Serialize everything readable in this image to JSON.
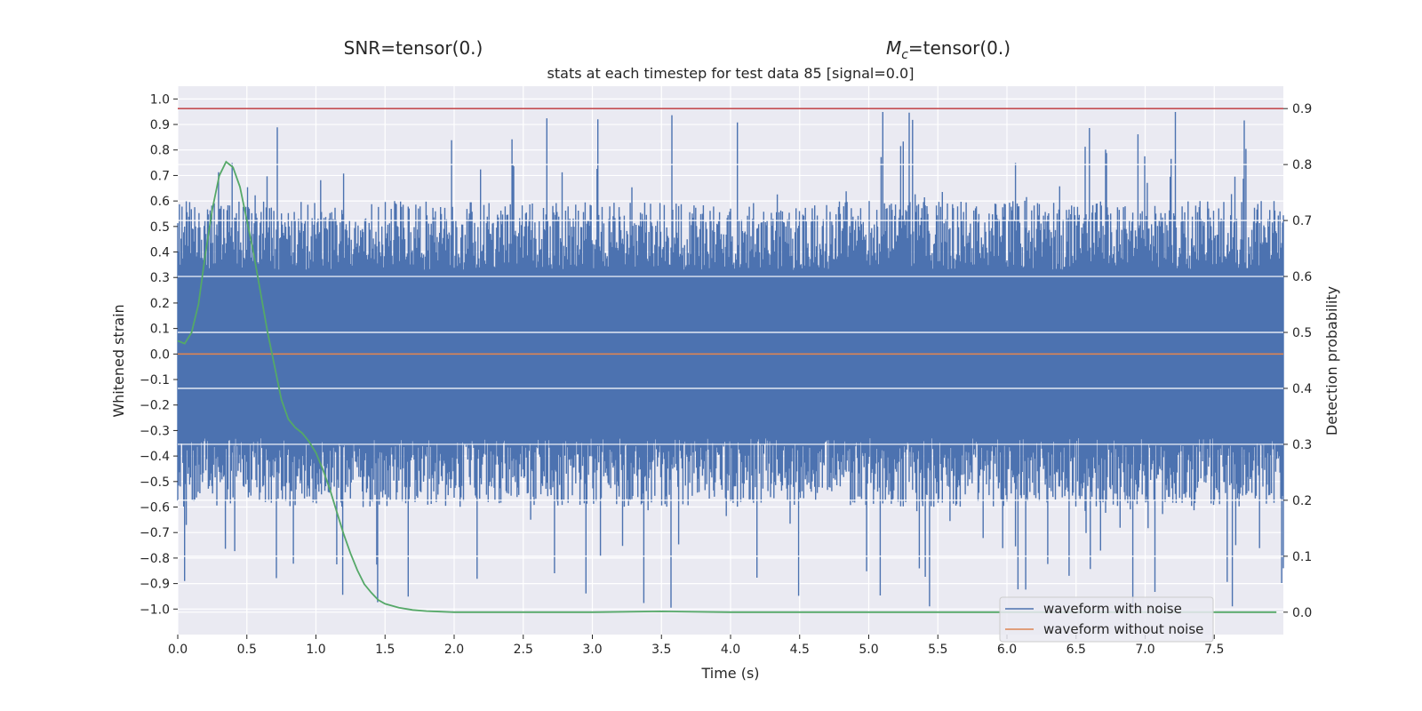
{
  "titles": {
    "left": "SNR=tensor(0.)",
    "right_symbol": "M",
    "right_subscript": "c",
    "right_rest": "=tensor(0.)",
    "subtitle": "stats at each timestep for test data 85 [signal=0.0]"
  },
  "colors": {
    "noise": "#4c72b0",
    "clean": "#dd8452",
    "probability": "#55a868",
    "threshold": "#c44e52",
    "plot_bg": "#eaeaf2",
    "grid": "#ffffff"
  },
  "chart_data": {
    "type": "line",
    "xlabel": "Time (s)",
    "ylabel": "Whitened strain",
    "y2label": "Detection probability",
    "xlim": [
      0.0,
      8.0
    ],
    "ylim": [
      -1.1,
      1.05
    ],
    "y2lim": [
      -0.04,
      0.94
    ],
    "xticks": [
      "0.0",
      "0.5",
      "1.0",
      "1.5",
      "2.0",
      "2.5",
      "3.0",
      "3.5",
      "4.0",
      "4.5",
      "5.0",
      "5.5",
      "6.0",
      "6.5",
      "7.0",
      "7.5"
    ],
    "yticks": [
      "1.0",
      "0.9",
      "0.8",
      "0.7",
      "0.6",
      "0.5",
      "0.4",
      "0.3",
      "0.2",
      "0.1",
      "0.0",
      "−0.1",
      "−0.2",
      "−0.3",
      "−0.4",
      "−0.5",
      "−0.6",
      "−0.7",
      "−0.8",
      "−0.9",
      "−1.0"
    ],
    "y2ticks": [
      "0.9",
      "0.8",
      "0.7",
      "0.6",
      "0.5",
      "0.4",
      "0.3",
      "0.2",
      "0.1",
      "0.0"
    ],
    "grid": true,
    "legend_position": "lower-right",
    "threshold": {
      "axis": "y2",
      "value": 0.9
    },
    "series": [
      {
        "name": "waveform with noise",
        "axis": "y",
        "style": "noise-band",
        "x_range": [
          0.0,
          8.0
        ],
        "envelope": {
          "upper_typical": 0.6,
          "lower_typical": -0.6,
          "peak_max": 0.95,
          "peak_min": -1.0
        }
      },
      {
        "name": "waveform without noise",
        "axis": "y",
        "x": [
          0.0,
          8.0
        ],
        "values": [
          0.0,
          0.0
        ]
      },
      {
        "axis": "y2",
        "x": [
          0.0,
          0.05,
          0.1,
          0.15,
          0.2,
          0.25,
          0.3,
          0.35,
          0.4,
          0.45,
          0.5,
          0.55,
          0.6,
          0.65,
          0.7,
          0.75,
          0.8,
          0.85,
          0.9,
          0.95,
          1.0,
          1.05,
          1.1,
          1.15,
          1.2,
          1.25,
          1.3,
          1.35,
          1.4,
          1.45,
          1.5,
          1.6,
          1.7,
          1.8,
          1.9,
          2.0,
          2.5,
          3.0,
          3.5,
          4.0,
          4.5,
          5.0,
          5.5,
          6.0,
          6.5,
          7.0,
          7.5,
          7.95
        ],
        "values": [
          0.485,
          0.48,
          0.5,
          0.55,
          0.64,
          0.72,
          0.78,
          0.805,
          0.795,
          0.76,
          0.7,
          0.64,
          0.57,
          0.5,
          0.44,
          0.38,
          0.345,
          0.33,
          0.32,
          0.305,
          0.285,
          0.255,
          0.22,
          0.18,
          0.14,
          0.105,
          0.075,
          0.05,
          0.035,
          0.022,
          0.015,
          0.008,
          0.004,
          0.002,
          0.001,
          0.0,
          0.0,
          0.0,
          0.0015,
          0.0,
          0.0,
          0.0,
          0.0,
          0.0,
          0.0,
          0.0,
          0.0,
          0.0
        ]
      }
    ]
  }
}
